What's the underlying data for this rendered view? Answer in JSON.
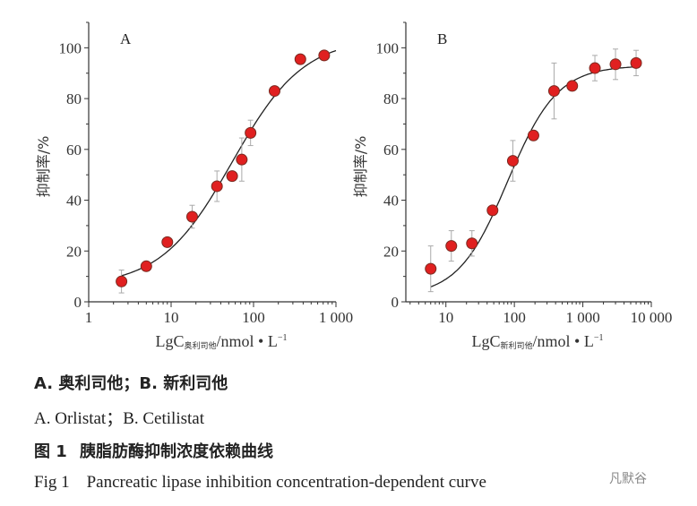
{
  "chart_data": [
    {
      "type": "scatter",
      "panel_label": "A",
      "xlabel_main": "LgC",
      "xlabel_sub": "奥利司他",
      "xlabel_unit": "/nmol • L",
      "xlabel_exp": "−1",
      "ylabel": "抑制率/%",
      "x_scale": "log",
      "xlim": [
        1,
        1000
      ],
      "ylim": [
        0,
        110
      ],
      "x_ticks": [
        1,
        10,
        100,
        1000
      ],
      "x_tick_labels": [
        "1",
        "10",
        "100",
        "1 000"
      ],
      "y_ticks": [
        0,
        20,
        40,
        60,
        80,
        100
      ],
      "y_tick_labels": [
        "0",
        "20",
        "40",
        "60",
        "80",
        "100"
      ],
      "grid": false,
      "marker_color": "#e02020",
      "points": [
        {
          "x": 2.5,
          "y": 8,
          "err": 4.5
        },
        {
          "x": 5,
          "y": 14,
          "err": 1
        },
        {
          "x": 9,
          "y": 23.5,
          "err": 1
        },
        {
          "x": 18,
          "y": 33.5,
          "err": 4.5
        },
        {
          "x": 36,
          "y": 45.5,
          "err": 6
        },
        {
          "x": 55,
          "y": 49.5,
          "err": 1
        },
        {
          "x": 72,
          "y": 56,
          "err": 8.5
        },
        {
          "x": 92,
          "y": 66.5,
          "err": 5
        },
        {
          "x": 180,
          "y": 83,
          "err": 1
        },
        {
          "x": 370,
          "y": 95.5,
          "err": 1
        },
        {
          "x": 720,
          "y": 97,
          "err": 1
        }
      ]
    },
    {
      "type": "scatter",
      "panel_label": "B",
      "xlabel_main": "LgC",
      "xlabel_sub": "新利司他",
      "xlabel_unit": "/nmol • L",
      "xlabel_exp": "−1",
      "ylabel": "抑制率/%",
      "x_scale": "log",
      "xlim": [
        2.6,
        10000
      ],
      "ylim": [
        0,
        110
      ],
      "x_ticks": [
        10,
        100,
        1000,
        10000
      ],
      "x_tick_labels": [
        "10",
        "100",
        "1 000",
        "10 000"
      ],
      "y_ticks": [
        0,
        20,
        40,
        60,
        80,
        100
      ],
      "y_tick_labels": [
        "0",
        "20",
        "40",
        "60",
        "80",
        "100"
      ],
      "grid": false,
      "marker_color": "#e02020",
      "points": [
        {
          "x": 6,
          "y": 13,
          "err": 9
        },
        {
          "x": 12,
          "y": 22,
          "err": 6
        },
        {
          "x": 24,
          "y": 23,
          "err": 5
        },
        {
          "x": 48,
          "y": 36,
          "err": 1
        },
        {
          "x": 95,
          "y": 55.5,
          "err": 8
        },
        {
          "x": 190,
          "y": 65.5,
          "err": 2
        },
        {
          "x": 380,
          "y": 83,
          "err": 11
        },
        {
          "x": 700,
          "y": 85,
          "err": 1
        },
        {
          "x": 1500,
          "y": 92,
          "err": 5
        },
        {
          "x": 3000,
          "y": 93.5,
          "err": 6
        },
        {
          "x": 6000,
          "y": 94,
          "err": 5
        }
      ]
    }
  ],
  "captions": {
    "line1_a": "A. 奥利司他；",
    "line1_b": "B. 新利司他",
    "line2": "A. Orlistat；B. Cetilistat",
    "line3_num": "图 1",
    "line3_text": "胰脂肪酶抑制浓度依赖曲线",
    "line4": "Fig 1    Pancreatic lipase inhibition concentration-dependent curve"
  },
  "watermark": "凡默谷"
}
